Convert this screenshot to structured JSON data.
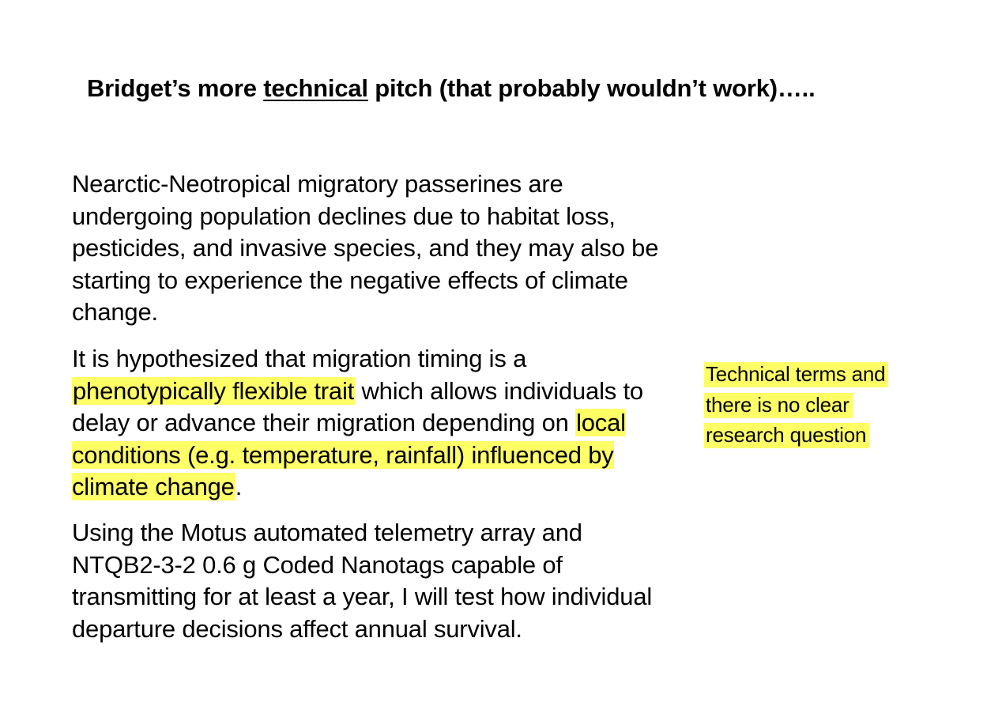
{
  "title": {
    "prefix": "Bridget’s more ",
    "emphasis": "technical",
    "suffix": " pitch (that probably wouldn’t work)….."
  },
  "paragraphs": {
    "p1": "Nearctic-Neotropical migratory passerines are undergoing population declines due to habitat loss, pesticides, and invasive species, and they may also be starting to experience the negative effects of climate change.",
    "p2_part1": "It is hypothesized that migration timing is a ",
    "p2_highlight1": "phenotypically flexible trait",
    "p2_part2": " which allows individuals to delay or advance their migration depending on ",
    "p2_highlight2": "local conditions (e.g. temperature, rainfall) influenced by climate change",
    "p2_part3": ".",
    "p3": "Using the Motus automated telemetry array and NTQB2-3-2 0.6 g Coded Nanotags capable of transmitting for at least a year, I will test how individual departure decisions affect annual survival."
  },
  "note": {
    "line1": "Technical terms and",
    "line2": "there is no clear",
    "line3": "research question"
  },
  "colors": {
    "highlight": "#ffff66",
    "text": "#000000",
    "background": "#ffffff"
  }
}
